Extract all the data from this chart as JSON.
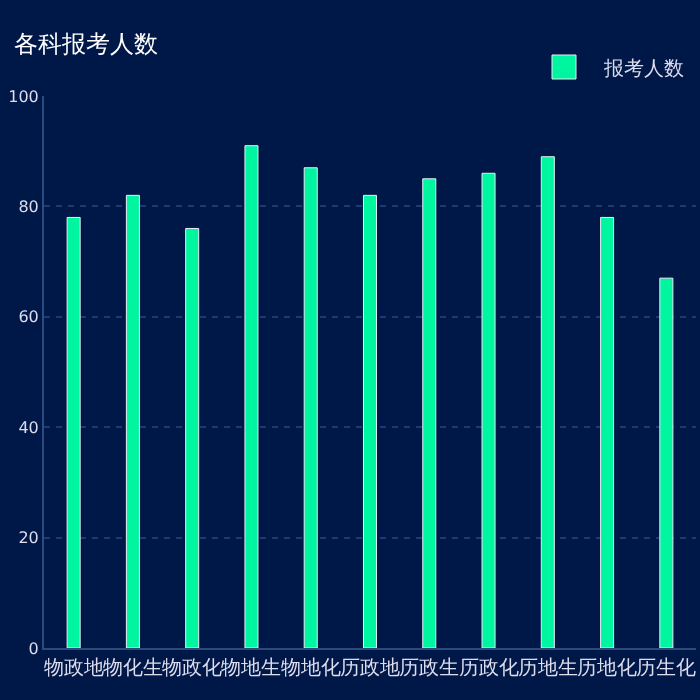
{
  "chart_data": {
    "type": "bar",
    "title": "各科报考人数",
    "categories": [
      "物政地",
      "物化生",
      "物政化",
      "物地生",
      "物地化",
      "历政地",
      "历政生",
      "历政化",
      "历地生",
      "历地化",
      "历生化"
    ],
    "series": [
      {
        "name": "报考人数",
        "color": "#00f5a0",
        "values": [
          78,
          82,
          76,
          91,
          87,
          82,
          85,
          86,
          89,
          78,
          67
        ]
      }
    ],
    "ylim": [
      0,
      100
    ],
    "yticks": [
      0,
      20,
      40,
      60,
      80,
      100
    ],
    "grid": "y",
    "legend": "top right"
  }
}
